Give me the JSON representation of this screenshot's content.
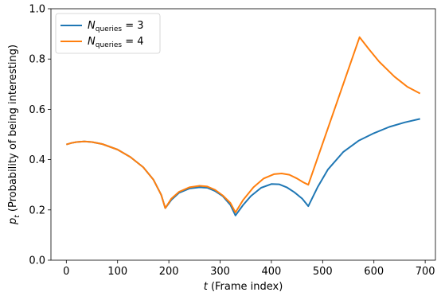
{
  "chart_data": {
    "type": "line",
    "xlabel_var": "t",
    "xlabel": " (Frame index)",
    "ylabel_var": "p",
    "ylabel_sub": "t",
    "ylabel": " (Probability of being interesting)",
    "xlim": [
      -30,
      720
    ],
    "ylim": [
      0.0,
      1.0
    ],
    "xticks": [
      "0",
      "100",
      "200",
      "300",
      "400",
      "500",
      "600",
      "700"
    ],
    "yticks": [
      "0.0",
      "0.2",
      "0.4",
      "0.6",
      "0.8",
      "1.0"
    ],
    "grid": false,
    "legend_position": "top-left",
    "series": [
      {
        "name_var": "N",
        "name_sub": "queries",
        "name_rest": " = 3",
        "color": "#1f77b4",
        "points": [
          [
            0,
            0.46
          ],
          [
            10,
            0.466
          ],
          [
            20,
            0.47
          ],
          [
            35,
            0.472
          ],
          [
            50,
            0.47
          ],
          [
            70,
            0.462
          ],
          [
            100,
            0.44
          ],
          [
            125,
            0.41
          ],
          [
            150,
            0.37
          ],
          [
            170,
            0.32
          ],
          [
            185,
            0.26
          ],
          [
            193,
            0.207
          ],
          [
            205,
            0.24
          ],
          [
            220,
            0.268
          ],
          [
            240,
            0.285
          ],
          [
            260,
            0.29
          ],
          [
            275,
            0.288
          ],
          [
            290,
            0.275
          ],
          [
            305,
            0.255
          ],
          [
            320,
            0.22
          ],
          [
            330,
            0.178
          ],
          [
            345,
            0.22
          ],
          [
            360,
            0.255
          ],
          [
            380,
            0.288
          ],
          [
            400,
            0.303
          ],
          [
            415,
            0.302
          ],
          [
            430,
            0.29
          ],
          [
            445,
            0.27
          ],
          [
            460,
            0.245
          ],
          [
            472,
            0.215
          ],
          [
            490,
            0.29
          ],
          [
            510,
            0.36
          ],
          [
            540,
            0.43
          ],
          [
            570,
            0.475
          ],
          [
            600,
            0.505
          ],
          [
            630,
            0.53
          ],
          [
            660,
            0.548
          ],
          [
            690,
            0.562
          ]
        ]
      },
      {
        "name_var": "N",
        "name_sub": "queries",
        "name_rest": " = 4",
        "color": "#ff7f0e",
        "points": [
          [
            0,
            0.46
          ],
          [
            10,
            0.466
          ],
          [
            20,
            0.47
          ],
          [
            35,
            0.472
          ],
          [
            50,
            0.47
          ],
          [
            70,
            0.462
          ],
          [
            100,
            0.44
          ],
          [
            125,
            0.41
          ],
          [
            150,
            0.37
          ],
          [
            170,
            0.32
          ],
          [
            185,
            0.26
          ],
          [
            193,
            0.207
          ],
          [
            205,
            0.245
          ],
          [
            220,
            0.272
          ],
          [
            240,
            0.29
          ],
          [
            260,
            0.296
          ],
          [
            275,
            0.293
          ],
          [
            290,
            0.28
          ],
          [
            305,
            0.258
          ],
          [
            320,
            0.228
          ],
          [
            330,
            0.19
          ],
          [
            345,
            0.24
          ],
          [
            365,
            0.29
          ],
          [
            385,
            0.325
          ],
          [
            405,
            0.342
          ],
          [
            420,
            0.345
          ],
          [
            435,
            0.34
          ],
          [
            450,
            0.325
          ],
          [
            462,
            0.31
          ],
          [
            472,
            0.3
          ],
          [
            572,
            0.887
          ],
          [
            590,
            0.84
          ],
          [
            610,
            0.79
          ],
          [
            640,
            0.73
          ],
          [
            665,
            0.69
          ],
          [
            690,
            0.663
          ]
        ]
      }
    ]
  }
}
